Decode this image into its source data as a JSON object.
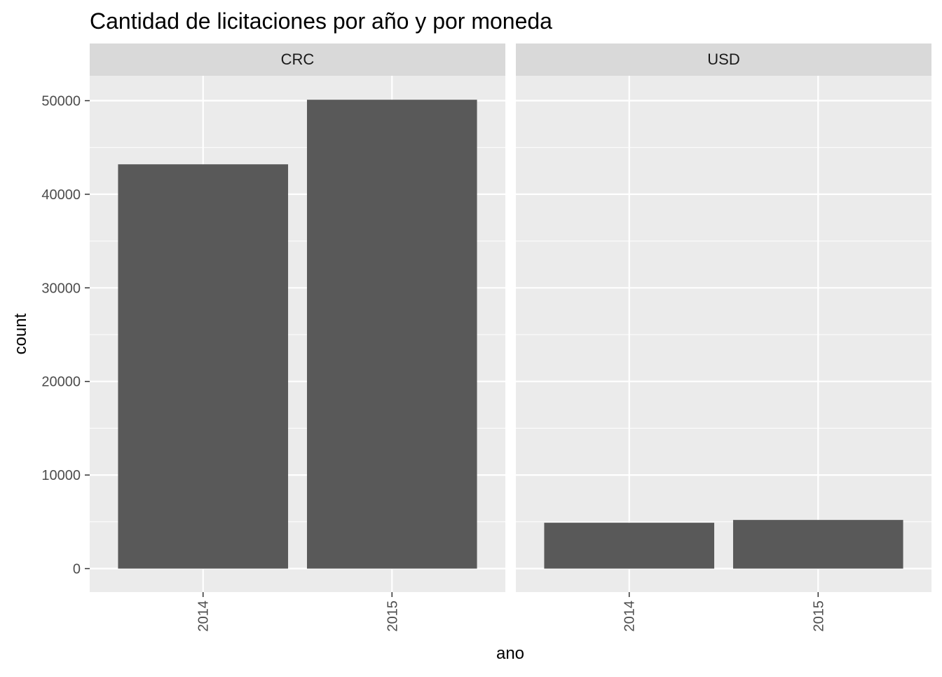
{
  "chart_data": {
    "type": "bar",
    "title": "Cantidad de licitaciones por año y por moneda",
    "xlabel": "ano",
    "ylabel": "count",
    "categories": [
      "2014",
      "2015"
    ],
    "ylim": [
      0,
      52700
    ],
    "y_ticks": [
      0,
      10000,
      20000,
      30000,
      40000,
      50000
    ],
    "grid": true,
    "bar_color": "#595959",
    "panel_color": "#ebebeb",
    "strip_color": "#d9d9d9",
    "grid_color": "#ffffff",
    "facets": [
      {
        "label": "CRC",
        "values": [
          43200,
          50100
        ]
      },
      {
        "label": "USD",
        "values": [
          4900,
          5200
        ]
      }
    ]
  }
}
